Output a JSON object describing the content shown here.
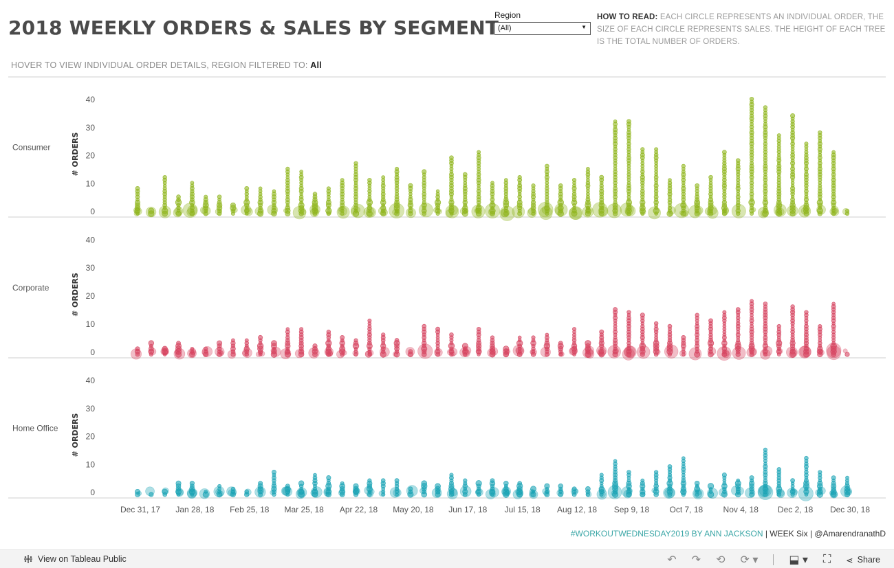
{
  "header": {
    "title": "2018 WEEKLY ORDERS & SALES BY SEGMENT",
    "subtitle_prefix": "HOVER TO VIEW INDIVIDUAL ORDER DETAILS, REGION FILTERED TO: ",
    "subtitle_value": "All"
  },
  "filter": {
    "label": "Region",
    "selected": "(All)"
  },
  "howto": {
    "lead": "HOW TO READ:",
    "text": " EACH CIRCLE REPRESENTS AN INDIVIDUAL ORDER, THE SIZE OF EACH CIRCLE REPRESENTS SALES.  THE HEIGHT OF EACH TREE IS THE TOTAL NUMBER OF ORDERS."
  },
  "credit": {
    "tag": "#WORKOUTWEDNESDAY2019",
    "author": " BY ANN JACKSON",
    "week": " | WEEK Six | ",
    "handle": "@AmarendranathD"
  },
  "footer": {
    "view_label": "View on Tableau Public",
    "share_label": "Share"
  },
  "colors": {
    "consumer": "#8fb51d",
    "corporate": "#d6435f",
    "home_office": "#1aa3b5",
    "axis": "#cfcfcf"
  },
  "chart_data": {
    "type": "scatter",
    "ylabel": "# ORDERS",
    "yticks": [
      0,
      10,
      20,
      30,
      40
    ],
    "ylim": [
      0,
      43
    ],
    "x_tick_labels": [
      "Dec 31, 17",
      "Jan 28, 18",
      "Feb 25, 18",
      "Mar 25, 18",
      "Apr 22, 18",
      "May 20, 18",
      "Jun 17, 18",
      "Jul 15, 18",
      "Aug 12, 18",
      "Sep 9, 18",
      "Oct 7, 18",
      "Nov 4, 18",
      "Dec 2, 18",
      "Dec 30, 18"
    ],
    "weeks": 53,
    "series": [
      {
        "name": "Consumer",
        "color": "#8fb51d",
        "values": [
          10,
          2,
          14,
          7,
          12,
          7,
          7,
          4,
          10,
          10,
          9,
          17,
          16,
          8,
          10,
          13,
          19,
          13,
          14,
          17,
          11,
          16,
          9,
          21,
          15,
          23,
          12,
          13,
          14,
          11,
          18,
          11,
          13,
          17,
          14,
          34,
          34,
          24,
          24,
          13,
          18,
          11,
          14,
          23,
          20,
          42,
          39,
          29,
          36,
          26,
          30,
          23,
          2
        ]
      },
      {
        "name": "Corporate",
        "color": "#d6435f",
        "values": [
          3,
          5,
          3,
          5,
          3,
          3,
          5,
          6,
          6,
          7,
          5,
          10,
          10,
          4,
          9,
          7,
          6,
          13,
          8,
          6,
          2,
          11,
          10,
          8,
          4,
          10,
          7,
          3,
          7,
          7,
          8,
          5,
          10,
          5,
          9,
          17,
          16,
          15,
          12,
          11,
          7,
          15,
          13,
          16,
          17,
          20,
          19,
          11,
          18,
          16,
          11,
          19,
          1
        ]
      },
      {
        "name": "Home Office",
        "color": "#1aa3b5",
        "values": [
          2,
          1,
          2,
          5,
          5,
          2,
          4,
          3,
          2,
          5,
          9,
          4,
          5,
          8,
          7,
          5,
          4,
          6,
          6,
          6,
          3,
          5,
          4,
          8,
          6,
          5,
          6,
          5,
          5,
          3,
          4,
          4,
          3,
          3,
          8,
          13,
          9,
          6,
          9,
          11,
          14,
          5,
          4,
          8,
          6,
          7,
          17,
          10,
          6,
          14,
          9,
          7,
          7
        ]
      }
    ]
  }
}
